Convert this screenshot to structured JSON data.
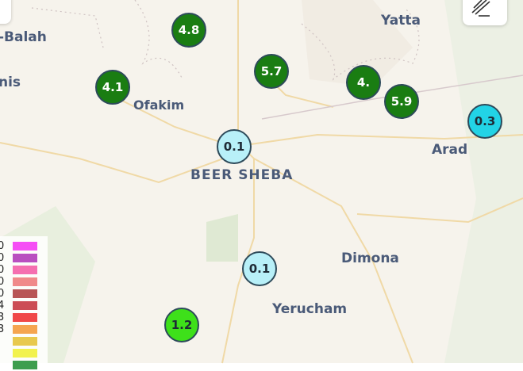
{
  "places": [
    {
      "name": "-Balah"
    },
    {
      "name": "nis"
    },
    {
      "name": "Ofakim"
    },
    {
      "name": "BEER SHEBA"
    },
    {
      "name": "Yatta"
    },
    {
      "name": "Arad"
    },
    {
      "name": "Dimona"
    },
    {
      "name": "Yerucham"
    }
  ],
  "markers": [
    {
      "value": "4.8",
      "color": "#1a7d12"
    },
    {
      "value": "5.7",
      "color": "#1a7d12"
    },
    {
      "value": "4.1",
      "color": "#1a7d12"
    },
    {
      "value": "4.",
      "color": "#1a7d12"
    },
    {
      "value": "5.9",
      "color": "#1a7d12"
    },
    {
      "value": "0.3",
      "color": "#22d3e6"
    },
    {
      "value": "0.1",
      "color": "#b8f0f8"
    },
    {
      "value": "0.1",
      "color": "#b8f0f8"
    },
    {
      "value": "1.2",
      "color": "#3ee01a"
    }
  ],
  "legend": [
    {
      "label": "0",
      "color": "#f54ef5"
    },
    {
      "label": "0",
      "color": "#b94fc0"
    },
    {
      "label": "0",
      "color": "#f56fb0"
    },
    {
      "label": "0",
      "color": "#f08a8a"
    },
    {
      "label": "0",
      "color": "#b85555"
    },
    {
      "label": "4",
      "color": "#cc4d55"
    },
    {
      "label": "3",
      "color": "#f04848"
    },
    {
      "label": "3",
      "color": "#f5a550"
    },
    {
      "label": "",
      "color": "#e8c94e"
    },
    {
      "label": "",
      "color": "#f2f24e"
    },
    {
      "label": "",
      "color": "#3e9e4e"
    }
  ],
  "controls": {
    "draw_icon": "draw-polygon-icon"
  }
}
